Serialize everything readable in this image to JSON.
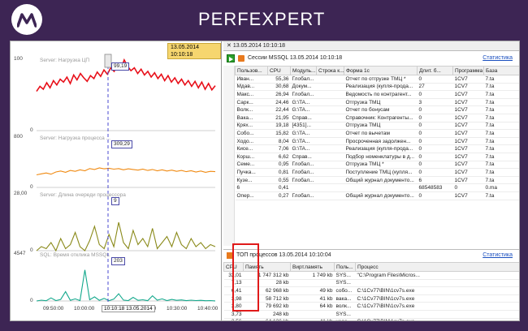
{
  "header": {
    "brand": "PERFEXPERT",
    "logo_icon": "perfexpert-logo-icon"
  },
  "chart_panel": {
    "time_chip": "13.05.2014 10:10:18",
    "cursor_label": "10:10:18 13.05.2014",
    "x_ticks": [
      "09:50:00",
      "10:00:00",
      "10:10:00",
      "10:20:00",
      "10:30:00",
      "10:40:00"
    ]
  },
  "chart_data": [
    {
      "type": "line",
      "title": "Server: Нагрузка ЦП",
      "ylim": [
        0,
        100
      ],
      "y_ticks": [
        "100",
        "0"
      ],
      "color": "#e8101a",
      "cursor_value": "99,19",
      "series": [
        {
          "values": [
            55,
            62,
            58,
            67,
            60,
            70,
            64,
            72,
            68,
            75,
            66,
            78,
            71,
            80,
            74,
            69,
            77,
            73,
            82,
            76,
            85,
            79,
            88,
            83,
            92,
            86,
            99,
            90,
            84,
            88,
            80,
            86,
            78,
            83,
            75,
            81,
            73,
            79,
            70,
            77,
            68,
            74,
            66,
            72,
            64,
            70,
            62,
            69,
            60,
            68,
            58,
            66,
            57,
            63
          ]
        }
      ]
    },
    {
      "type": "line",
      "title": "Server: Нагрузка процесса ...",
      "ylim": [
        0,
        800
      ],
      "y_ticks": [
        "800",
        "0"
      ],
      "color": "#f08a12",
      "cursor_value": "309,29",
      "series": [
        {
          "values": [
            200,
            215,
            230,
            210,
            245,
            260,
            240,
            270,
            255,
            280,
            265,
            300,
            285,
            310,
            295,
            305,
            290,
            300,
            280,
            295,
            285,
            275,
            290,
            270,
            285,
            265,
            280,
            260,
            275,
            255,
            270,
            250,
            265,
            245,
            260,
            240,
            255,
            250
          ]
        }
      ]
    },
    {
      "type": "line",
      "title": "Server: Длина очереди процессора",
      "ylim": [
        0,
        28
      ],
      "y_ticks": [
        "28,00",
        "0"
      ],
      "color": "#8a8a1a",
      "cursor_value": "9",
      "series": [
        {
          "values": [
            0,
            2,
            1,
            4,
            0,
            6,
            1,
            3,
            9,
            2,
            0,
            5,
            12,
            3,
            1,
            8,
            2,
            14,
            4,
            1,
            10,
            3,
            6,
            2,
            11,
            1,
            4,
            7,
            2,
            9,
            3,
            1,
            6,
            2,
            4,
            1,
            3,
            2
          ]
        }
      ]
    },
    {
      "type": "line",
      "title": "SQL: Время отклика MSSQL",
      "ylim": [
        0,
        4547
      ],
      "y_ticks": [
        "4547",
        "0"
      ],
      "color": "#13a88c",
      "cursor_value": "203",
      "series": [
        {
          "values": [
            0,
            80,
            20,
            300,
            40,
            150,
            900,
            60,
            200,
            40,
            3000,
            120,
            400,
            60,
            250,
            30,
            180,
            700,
            90,
            40,
            350,
            60,
            120,
            30,
            500,
            80,
            200,
            40,
            150,
            60,
            100,
            30,
            80,
            40,
            60,
            20,
            40,
            10
          ]
        }
      ]
    }
  ],
  "sessions": {
    "tab": "13.05.2014 10:10:18",
    "title": "Сессии MSSQL  13.05.2014 10:10:18",
    "stats_link": "Статистика",
    "columns": [
      "Пользов...",
      "CPU",
      "Модуль...",
      "Строка к...",
      "Форма 1с",
      "Длит. б...",
      "Программа",
      "Базa"
    ],
    "rows": [
      [
        "Иван...",
        "55,36",
        "Глобал...",
        "",
        "Отчет по отгрузке ТМЦ  *",
        "0",
        "1CV7",
        "7.ta"
      ],
      [
        "Мдав...",
        "30,68",
        "Докум...",
        "",
        "Реализация (купля-прода...",
        "27",
        "1CV7",
        "7.ta"
      ],
      [
        "Макс...",
        "26,94",
        "Глобал...",
        "",
        "Ведомость по контрагент...",
        "0",
        "1CV7",
        "7.ta"
      ],
      [
        "Сарк...",
        "24,46",
        "G:\\TA...",
        "",
        "Отгрузка ТМЦ",
        "3",
        "1CV7",
        "7.ta"
      ],
      [
        "Волк...",
        "22,44",
        "G:\\TA...",
        "",
        "Отчет по бонусам",
        "0",
        "1CV7",
        "7.ta"
      ],
      [
        "Вака...",
        "21,95",
        "Справ...",
        "",
        "Справочник: Контрагенты...",
        "0",
        "1CV7",
        "7.ta"
      ],
      [
        "Крях...",
        "19,18",
        "[4351]...",
        "",
        "Отгрузка ТМЦ",
        "0",
        "1CV7",
        "7.ta"
      ],
      [
        "Собо...",
        "15,82",
        "G:\\TA...",
        "",
        "Отчет по вычетам",
        "0",
        "1CV7",
        "7.ta"
      ],
      [
        "Ходо...",
        "8,04",
        "G:\\TA...",
        "",
        "Просроченная задолжен...",
        "0",
        "1CV7",
        "7.ta"
      ],
      [
        "Кисе...",
        "7,06",
        "G:\\TA...",
        "",
        "Реализация (купля-прода...",
        "0",
        "1CV7",
        "7.ta"
      ],
      [
        "Корш...",
        "6,62",
        "Справ...",
        "",
        "Подбор номенклатуры в д...",
        "0",
        "1CV7",
        "7.ta"
      ],
      [
        "Семе...",
        "0,95",
        "Глобал...",
        "",
        "Отгрузка ТМЦ  *",
        "0",
        "1CV7",
        "7.ta"
      ],
      [
        "Пучка...",
        "0,81",
        "Глобал...",
        "",
        "Поступление ТМЦ (купля...",
        "0",
        "1CV7",
        "7.ta"
      ],
      [
        "Кузе...",
        "0,55",
        "Глобал...",
        "",
        "Общий журнал документо...",
        "6",
        "1CV7",
        "7.ta"
      ],
      [
        "6",
        "0,41",
        "",
        "",
        "",
        "68548583",
        "0",
        "0.ma"
      ],
      [
        "Опер...",
        "0,27",
        "Глобал...",
        "",
        "Общий журнал документо...",
        "0",
        "1CV7",
        "7.ta"
      ]
    ]
  },
  "processes": {
    "title": "ТОП процессов  13.05.2014 10:10:04",
    "stats_link": "Статистика",
    "columns": [
      "CPU",
      "Память",
      "Вирт.память",
      "Поль...",
      "Процесс"
    ],
    "rows": [
      [
        "32,01",
        "1 747 312 kb",
        "1 749 kb",
        "SYS...",
        "\"C:\\Program Files\\Micros..."
      ],
      [
        "7,13",
        "28 kb",
        "",
        "SYS...",
        ""
      ],
      [
        "6,41",
        "62 968 kb",
        "49 kb",
        "собо...",
        "C:\\1Cv77\\BIN\\1cv7s.exe"
      ],
      [
        "3,98",
        "58 712 kb",
        "41 kb",
        "вака...",
        "C:\\1Cv77\\BIN\\1cv7s.exe"
      ],
      [
        "3,80",
        "79 692 kb",
        "64 kb",
        "волк...",
        "C:\\1Cv77\\BIN\\1cv7s.exe"
      ],
      [
        "3,73",
        "248 kb",
        "",
        "SYS...",
        ""
      ],
      [
        "3,56",
        "64 136 kb",
        "41 kb",
        "ходо...",
        "C:\\1Cv77\\BIN\\1cv7s.exe"
      ],
      [
        "3,52",
        "55 292 kb",
        "41 kb",
        "кисе...",
        "C:\\1Cv77\\BIN\\1cv7s.exe"
      ],
      [
        "1,57",
        "78 380 kb",
        "63 kb",
        "softp...",
        "\"C:\\Program Files\\Softpoi..."
      ]
    ]
  },
  "colors": {
    "background": "#3d2554",
    "highlight": "#e01a1a",
    "link": "#1a4fbf"
  }
}
